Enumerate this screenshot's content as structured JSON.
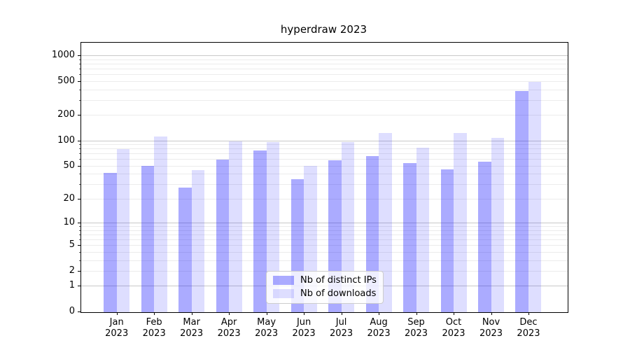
{
  "title": "hyperdraw 2023",
  "chart_data": {
    "type": "bar",
    "title": "hyperdraw 2023",
    "x_month_labels": [
      "Jan",
      "Feb",
      "Mar",
      "Apr",
      "May",
      "Jun",
      "Jul",
      "Aug",
      "Sep",
      "Oct",
      "Nov",
      "Dec"
    ],
    "x_year_label": "2023",
    "series": [
      {
        "name": "Nb of distinct IPs",
        "color": "rgba(0,0,255,0.33)",
        "values": [
          42,
          51,
          28,
          60,
          78,
          35,
          59,
          67,
          55,
          46,
          57,
          390
        ]
      },
      {
        "name": "Nb of downloads",
        "color": "rgba(0,0,255,0.13)",
        "values": [
          80,
          113,
          45,
          100,
          98,
          51,
          97,
          124,
          84,
          126,
          110,
          500
        ]
      }
    ],
    "y_scale": "log10(1+y)",
    "y_tick_labels": [
      1000,
      500,
      200,
      100,
      50,
      20,
      10,
      5,
      2,
      1,
      0
    ],
    "major_grid_values": [
      1,
      10,
      100,
      1000
    ],
    "ylim": [
      0,
      1440
    ],
    "grid": "horizontal",
    "legend_position": "lower center",
    "colors": {
      "major_grid": "#c9c9c9",
      "minor_grid": "#ececec",
      "spine": "#000000",
      "legend_border": "#cccccc",
      "legend_bg": "rgba(255,255,255,0.8)"
    }
  }
}
